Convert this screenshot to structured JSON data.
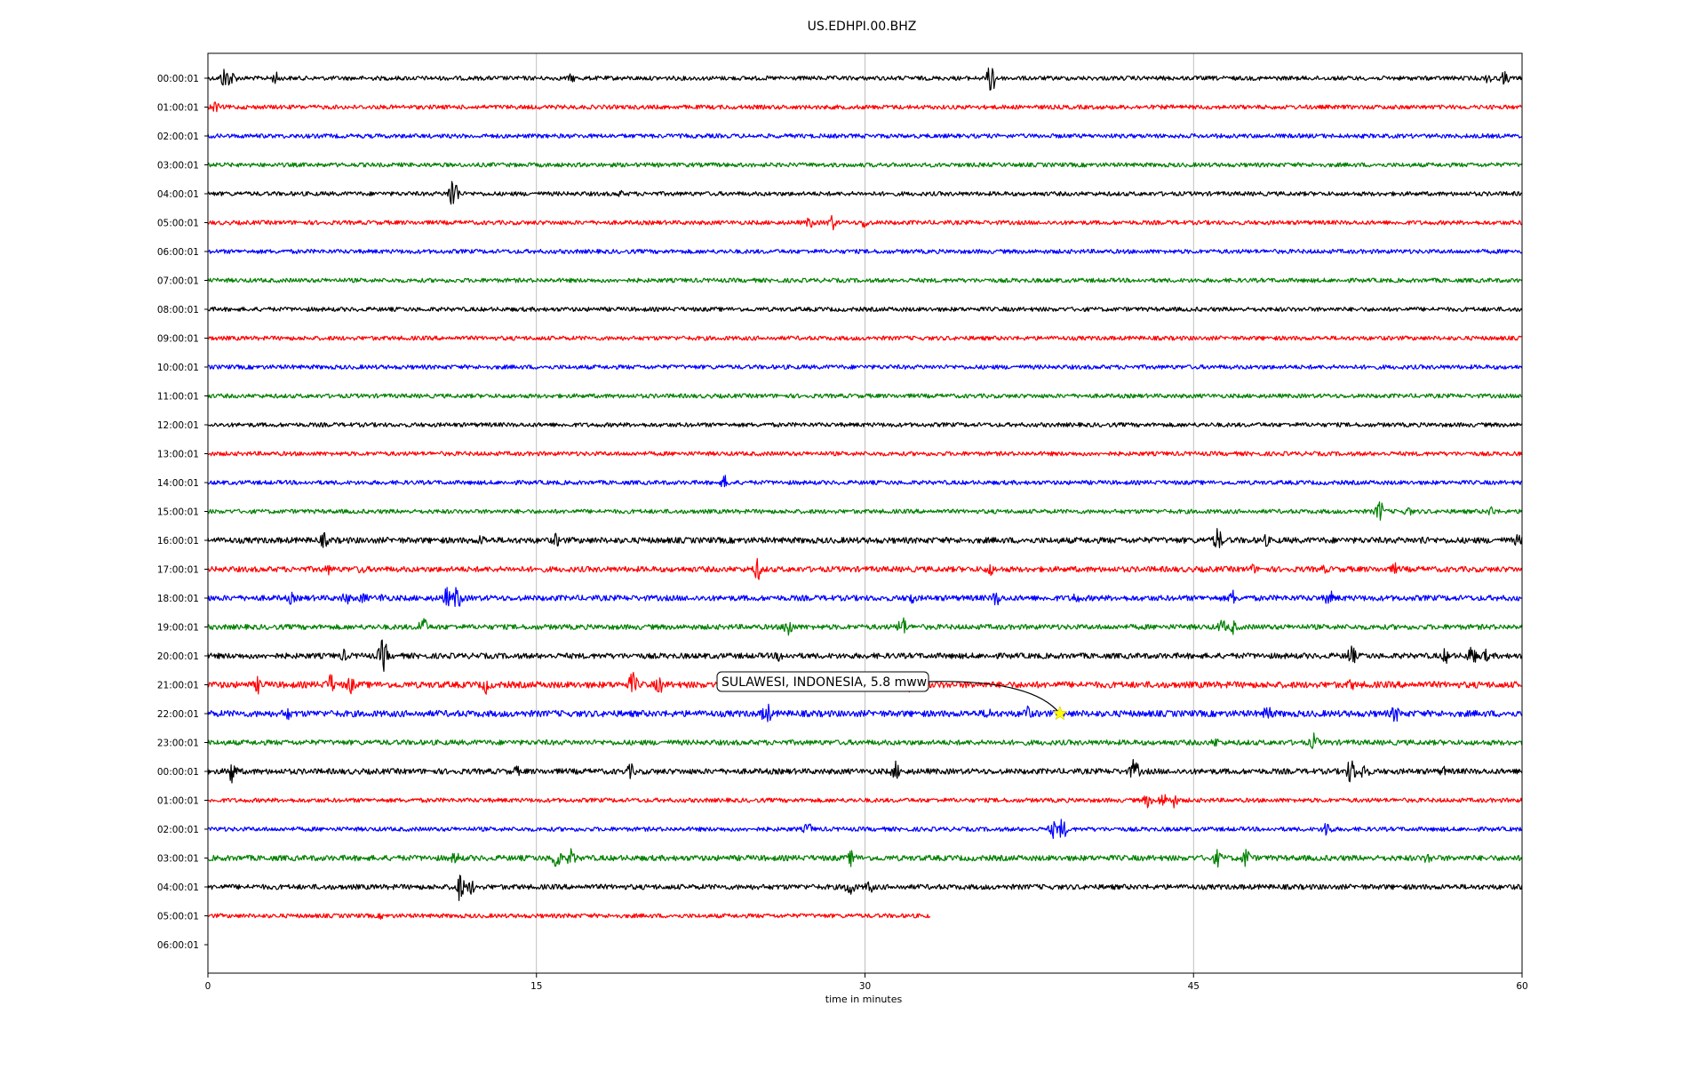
{
  "chart_data": {
    "type": "line",
    "title": "US.EDHPI.00.BHZ",
    "xlabel": "time in minutes",
    "ylabel": "",
    "xlim": [
      0,
      60
    ],
    "xticks": [
      0,
      15,
      30,
      45,
      60
    ],
    "xtick_labels": [
      "0",
      "15",
      "30",
      "45",
      "60"
    ],
    "vertical_grid_at": [
      15,
      30,
      45
    ],
    "row_labels": [
      "00:00:01",
      "01:00:01",
      "02:00:01",
      "03:00:01",
      "04:00:01",
      "05:00:01",
      "06:00:01",
      "07:00:01",
      "08:00:01",
      "09:00:01",
      "10:00:01",
      "11:00:01",
      "12:00:01",
      "13:00:01",
      "14:00:01",
      "15:00:01",
      "16:00:01",
      "17:00:01",
      "18:00:01",
      "19:00:01",
      "20:00:01",
      "21:00:01",
      "22:00:01",
      "23:00:01",
      "00:00:01",
      "01:00:01",
      "02:00:01",
      "03:00:01",
      "04:00:01",
      "05:00:01",
      "06:00:01"
    ],
    "trace_colors": [
      "#000000",
      "#ff0000",
      "#0000ff",
      "#008000"
    ],
    "trace_end_minutes": [
      60,
      60,
      60,
      60,
      60,
      60,
      60,
      60,
      60,
      60,
      60,
      60,
      60,
      60,
      60,
      60,
      60,
      60,
      60,
      60,
      60,
      60,
      60,
      60,
      60,
      60,
      60,
      60,
      60,
      33,
      0
    ],
    "trace_noise_level": [
      1,
      1,
      1,
      1,
      1,
      1,
      1,
      1,
      1,
      1,
      1,
      1,
      1,
      1,
      1,
      1,
      1.4,
      1.3,
      1.3,
      1.2,
      1.3,
      1.5,
      1.5,
      1.2,
      1.3,
      1,
      1,
      1.3,
      1.2,
      1,
      0
    ],
    "spikes": [
      {
        "row": 0,
        "t": 0.8,
        "amp": 16
      },
      {
        "row": 0,
        "t": 1.1,
        "amp": 9
      },
      {
        "row": 0,
        "t": 3.1,
        "amp": 8
      },
      {
        "row": 0,
        "t": 16.6,
        "amp": 6
      },
      {
        "row": 0,
        "t": 35.8,
        "amp": 22
      },
      {
        "row": 0,
        "t": 58.5,
        "amp": 8
      },
      {
        "row": 0,
        "t": 59.2,
        "amp": 9
      },
      {
        "row": 1,
        "t": 0.3,
        "amp": 8
      },
      {
        "row": 4,
        "t": 11.2,
        "amp": 24
      },
      {
        "row": 4,
        "t": 18.8,
        "amp": 5
      },
      {
        "row": 5,
        "t": 27.5,
        "amp": 8
      },
      {
        "row": 5,
        "t": 28.5,
        "amp": 10
      },
      {
        "row": 5,
        "t": 30.0,
        "amp": 8
      },
      {
        "row": 14,
        "t": 23.6,
        "amp": 9
      },
      {
        "row": 15,
        "t": 53.5,
        "amp": 14
      },
      {
        "row": 15,
        "t": 54.8,
        "amp": 7
      },
      {
        "row": 15,
        "t": 58.6,
        "amp": 7
      },
      {
        "row": 16,
        "t": 5.3,
        "amp": 10
      },
      {
        "row": 16,
        "t": 12.5,
        "amp": 8
      },
      {
        "row": 16,
        "t": 15.9,
        "amp": 9
      },
      {
        "row": 16,
        "t": 46.1,
        "amp": 16
      },
      {
        "row": 16,
        "t": 48.3,
        "amp": 8
      },
      {
        "row": 16,
        "t": 55.5,
        "amp": 7
      },
      {
        "row": 16,
        "t": 59.8,
        "amp": 8
      },
      {
        "row": 17,
        "t": 5.5,
        "amp": 7
      },
      {
        "row": 17,
        "t": 7.0,
        "amp": 7
      },
      {
        "row": 17,
        "t": 25.1,
        "amp": 14
      },
      {
        "row": 17,
        "t": 35.7,
        "amp": 9
      },
      {
        "row": 17,
        "t": 47.7,
        "amp": 7
      },
      {
        "row": 17,
        "t": 51.0,
        "amp": 6
      },
      {
        "row": 17,
        "t": 54.2,
        "amp": 8
      },
      {
        "row": 18,
        "t": 3.8,
        "amp": 8
      },
      {
        "row": 18,
        "t": 6.3,
        "amp": 9
      },
      {
        "row": 18,
        "t": 7.1,
        "amp": 8
      },
      {
        "row": 18,
        "t": 8.0,
        "amp": 7
      },
      {
        "row": 18,
        "t": 10.9,
        "amp": 13
      },
      {
        "row": 18,
        "t": 11.4,
        "amp": 16
      },
      {
        "row": 18,
        "t": 32.1,
        "amp": 9
      },
      {
        "row": 18,
        "t": 36.0,
        "amp": 11
      },
      {
        "row": 18,
        "t": 39.6,
        "amp": 8
      },
      {
        "row": 18,
        "t": 46.8,
        "amp": 10
      },
      {
        "row": 18,
        "t": 51.2,
        "amp": 11
      },
      {
        "row": 19,
        "t": 9.8,
        "amp": 14
      },
      {
        "row": 19,
        "t": 26.5,
        "amp": 14
      },
      {
        "row": 19,
        "t": 31.7,
        "amp": 14
      },
      {
        "row": 19,
        "t": 46.3,
        "amp": 10
      },
      {
        "row": 19,
        "t": 46.8,
        "amp": 9
      },
      {
        "row": 20,
        "t": 6.2,
        "amp": 8
      },
      {
        "row": 20,
        "t": 8.0,
        "amp": 22
      },
      {
        "row": 20,
        "t": 26.1,
        "amp": 8
      },
      {
        "row": 20,
        "t": 52.2,
        "amp": 14
      },
      {
        "row": 20,
        "t": 56.5,
        "amp": 10
      },
      {
        "row": 20,
        "t": 57.7,
        "amp": 14
      },
      {
        "row": 20,
        "t": 58.3,
        "amp": 9
      },
      {
        "row": 21,
        "t": 2.3,
        "amp": 11
      },
      {
        "row": 21,
        "t": 5.6,
        "amp": 14
      },
      {
        "row": 21,
        "t": 6.5,
        "amp": 12
      },
      {
        "row": 21,
        "t": 12.7,
        "amp": 11
      },
      {
        "row": 21,
        "t": 19.4,
        "amp": 16
      },
      {
        "row": 21,
        "t": 20.6,
        "amp": 12
      },
      {
        "row": 21,
        "t": 32.0,
        "amp": 10
      },
      {
        "row": 21,
        "t": 52.2,
        "amp": 8
      },
      {
        "row": 22,
        "t": 3.6,
        "amp": 10
      },
      {
        "row": 22,
        "t": 25.5,
        "amp": 16
      },
      {
        "row": 22,
        "t": 35.6,
        "amp": 9
      },
      {
        "row": 22,
        "t": 37.4,
        "amp": 11
      },
      {
        "row": 22,
        "t": 48.4,
        "amp": 12
      },
      {
        "row": 22,
        "t": 54.2,
        "amp": 12
      },
      {
        "row": 23,
        "t": 46.0,
        "amp": 7
      },
      {
        "row": 23,
        "t": 50.5,
        "amp": 11
      },
      {
        "row": 24,
        "t": 1.1,
        "amp": 16
      },
      {
        "row": 24,
        "t": 14.1,
        "amp": 7
      },
      {
        "row": 24,
        "t": 19.3,
        "amp": 10
      },
      {
        "row": 24,
        "t": 31.4,
        "amp": 12
      },
      {
        "row": 24,
        "t": 42.3,
        "amp": 16
      },
      {
        "row": 24,
        "t": 52.2,
        "amp": 18
      },
      {
        "row": 24,
        "t": 52.8,
        "amp": 12
      },
      {
        "row": 24,
        "t": 56.4,
        "amp": 7
      },
      {
        "row": 25,
        "t": 42.9,
        "amp": 9
      },
      {
        "row": 25,
        "t": 43.6,
        "amp": 10
      },
      {
        "row": 25,
        "t": 44.1,
        "amp": 9
      },
      {
        "row": 26,
        "t": 27.4,
        "amp": 9
      },
      {
        "row": 26,
        "t": 38.6,
        "amp": 11
      },
      {
        "row": 26,
        "t": 39.0,
        "amp": 14
      },
      {
        "row": 26,
        "t": 51.1,
        "amp": 12
      },
      {
        "row": 27,
        "t": 11.3,
        "amp": 9
      },
      {
        "row": 27,
        "t": 15.9,
        "amp": 16
      },
      {
        "row": 27,
        "t": 16.6,
        "amp": 12
      },
      {
        "row": 27,
        "t": 29.4,
        "amp": 11
      },
      {
        "row": 27,
        "t": 46.1,
        "amp": 11
      },
      {
        "row": 27,
        "t": 47.4,
        "amp": 13
      },
      {
        "row": 27,
        "t": 55.7,
        "amp": 8
      },
      {
        "row": 28,
        "t": 11.5,
        "amp": 18
      },
      {
        "row": 28,
        "t": 12.0,
        "amp": 10
      },
      {
        "row": 28,
        "t": 29.3,
        "amp": 13
      },
      {
        "row": 28,
        "t": 30.2,
        "amp": 9
      },
      {
        "row": 29,
        "t": 7.9,
        "amp": 4
      },
      {
        "row": 29,
        "t": 16.5,
        "amp": 4
      }
    ],
    "annotation": {
      "text": "SULAWESI, INDONESIA, 5.8 mww",
      "event_row": 22,
      "event_minute": 38.9,
      "marker": "star",
      "marker_color": "#ffff00"
    }
  }
}
